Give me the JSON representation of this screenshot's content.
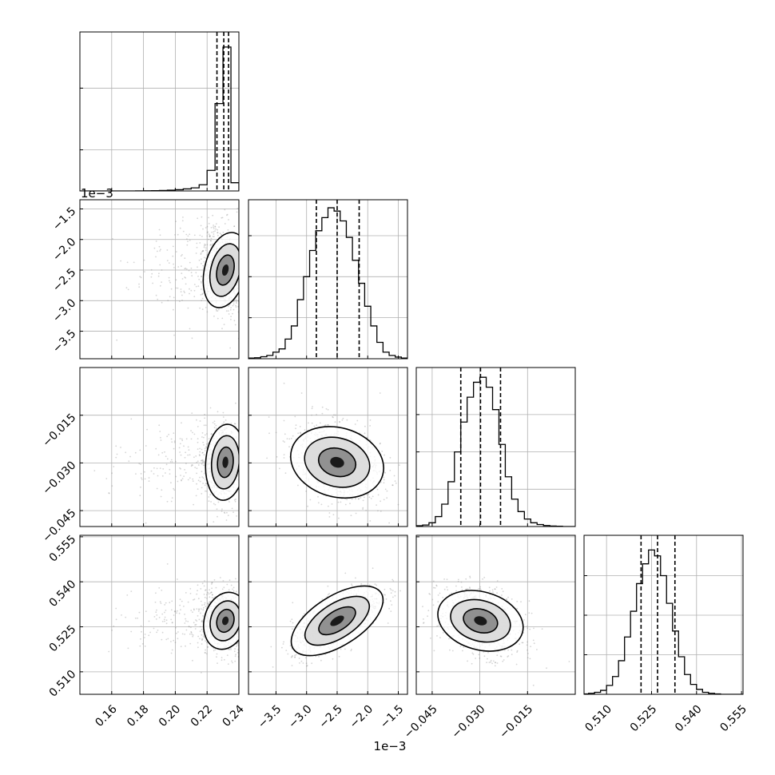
{
  "chart_data": {
    "type": "corner",
    "scale_offset_text": {
      "x_col1": "1e−3",
      "y_row1": "1e−3"
    },
    "colors": {
      "hist": "#000000",
      "scatter": "#888888",
      "contour": "#000000",
      "grid": "#b0b0b0"
    },
    "parameters": [
      {
        "range": [
          0.14,
          0.24
        ],
        "ticks": [
          0.16,
          0.18,
          0.2,
          0.22,
          0.24
        ],
        "tick_labels": [
          "0.16",
          "0.18",
          "0.20",
          "0.22",
          "0.24"
        ],
        "quantiles": [
          0.2262,
          0.2305,
          0.2335
        ],
        "hist_bins": [
          0.1425,
          0.1475,
          0.1525,
          0.1575,
          0.1625,
          0.1675,
          0.1725,
          0.1775,
          0.1825,
          0.1875,
          0.1925,
          0.1975,
          0.2025,
          0.2075,
          0.2125,
          0.2175,
          0.2225,
          0.2275,
          0.2325,
          0.2375
        ],
        "hist_counts": [
          0,
          0,
          0,
          0,
          0,
          0,
          0,
          1,
          2,
          3,
          5,
          8,
          12,
          20,
          30,
          60,
          200,
          850,
          1400,
          80
        ],
        "hist_ymax": 1500,
        "hist_yticks": [
          400,
          1000
        ],
        "center": 0.2315,
        "spread": 0.006,
        "skew_tail": true
      },
      {
        "range": [
          -3.95,
          -1.35
        ],
        "ticks": [
          -3.5,
          -3.0,
          -2.5,
          -2.0,
          -1.5
        ],
        "tick_labels": [
          "−3.5",
          "−3.0",
          "−2.5",
          "−2.0",
          "−1.5"
        ],
        "quantiles": [
          -2.84,
          -2.5,
          -2.14
        ],
        "hist_bins": [
          -3.9,
          -3.8,
          -3.7,
          -3.6,
          -3.5,
          -3.4,
          -3.3,
          -3.2,
          -3.1,
          -3.0,
          -2.9,
          -2.8,
          -2.7,
          -2.6,
          -2.5,
          -2.4,
          -2.3,
          -2.2,
          -2.1,
          -2.0,
          -1.9,
          -1.8,
          -1.7,
          -1.6,
          -1.5,
          -1.4
        ],
        "hist_counts": [
          2,
          3,
          6,
          10,
          20,
          30,
          60,
          100,
          180,
          250,
          330,
          390,
          430,
          460,
          450,
          420,
          370,
          300,
          230,
          160,
          100,
          50,
          20,
          10,
          5,
          2
        ],
        "hist_ymax": 470,
        "hist_yticks": [
          125,
          250,
          375
        ],
        "center": -2.5,
        "spread": 0.35,
        "skew_tail": false
      },
      {
        "range": [
          -0.05,
          0.0
        ],
        "ticks": [
          -0.045,
          -0.03,
          -0.015
        ],
        "tick_labels": [
          "−0.045",
          "−0.030",
          "−0.015"
        ],
        "quantiles": [
          -0.036,
          -0.0298,
          -0.0235
        ],
        "hist_bins": [
          -0.049,
          -0.047,
          -0.045,
          -0.043,
          -0.041,
          -0.039,
          -0.037,
          -0.035,
          -0.033,
          -0.031,
          -0.029,
          -0.027,
          -0.025,
          -0.023,
          -0.021,
          -0.019,
          -0.017,
          -0.015,
          -0.013,
          -0.011,
          -0.009,
          -0.007,
          -0.005,
          -0.003,
          -0.001
        ],
        "hist_counts": [
          3,
          6,
          15,
          40,
          90,
          180,
          300,
          420,
          520,
          580,
          600,
          560,
          470,
          330,
          200,
          110,
          60,
          30,
          15,
          8,
          4,
          2,
          1,
          0,
          0
        ],
        "hist_ymax": 620,
        "hist_yticks": [
          150,
          300,
          450
        ],
        "center": -0.0298,
        "spread": 0.0062,
        "skew_tail": false
      },
      {
        "range": [
          0.5025,
          0.5555
        ],
        "ticks": [
          0.51,
          0.525,
          0.54,
          0.555
        ],
        "tick_labels": [
          "0.510",
          "0.525",
          "0.540",
          "0.555"
        ],
        "quantiles": [
          0.5215,
          0.527,
          0.5328
        ],
        "hist_bins": [
          0.503,
          0.505,
          0.507,
          0.509,
          0.511,
          0.513,
          0.515,
          0.517,
          0.519,
          0.521,
          0.523,
          0.525,
          0.527,
          0.529,
          0.531,
          0.533,
          0.535,
          0.537,
          0.539,
          0.541,
          0.543,
          0.545,
          0.547,
          0.549
        ],
        "hist_counts": [
          2,
          5,
          10,
          20,
          45,
          90,
          170,
          290,
          420,
          560,
          660,
          730,
          700,
          600,
          460,
          320,
          190,
          100,
          50,
          25,
          10,
          5,
          2,
          0
        ],
        "hist_ymax": 780,
        "hist_yticks": [
          200,
          400,
          600
        ],
        "center": 0.527,
        "spread": 0.0055,
        "skew_tail": false
      }
    ],
    "correlations": [
      [
        1,
        -0.3,
        -0.1,
        -0.35
      ],
      [
        -0.3,
        1,
        -0.35,
        0.72
      ],
      [
        -0.1,
        -0.35,
        1,
        -0.35
      ],
      [
        -0.35,
        0.72,
        -0.35,
        1
      ]
    ]
  }
}
